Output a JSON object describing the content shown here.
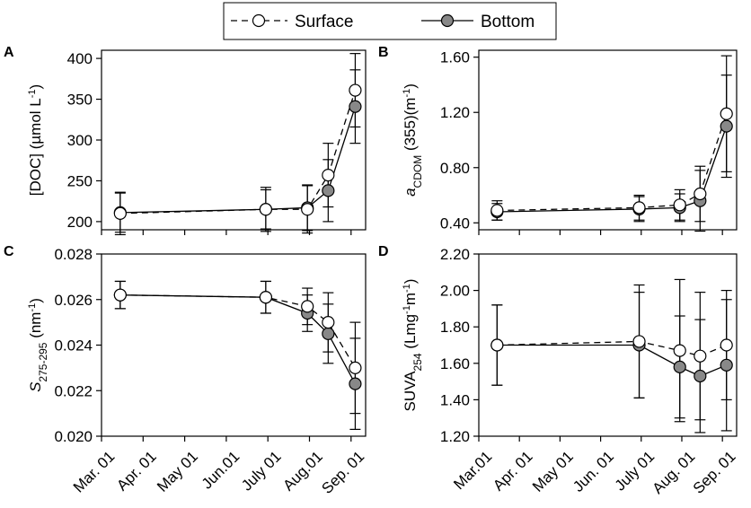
{
  "legend": {
    "surface_label": "Surface",
    "bottom_label": "Bottom"
  },
  "colors": {
    "bottom_fill": "#888888",
    "surface_fill": "#ffffff",
    "line": "#000000"
  },
  "chart_data": [
    {
      "panel": "A",
      "type": "line",
      "ylabel_main": "[DOC] (µmol L",
      "ylabel_sup": "-1",
      "ylabel_end": ")",
      "ylim": [
        190,
        410
      ],
      "yticks": [
        200,
        250,
        300,
        350,
        400
      ],
      "tick_labels": [
        "200",
        "250",
        "300",
        "350",
        "400"
      ],
      "decimals": 0,
      "xlim": [
        0,
        6.35
      ],
      "series": [
        {
          "name": "Surface",
          "x": [
            0.45,
            3.95,
            4.95,
            5.45,
            6.1
          ],
          "y": [
            210,
            215,
            215,
            257,
            361
          ],
          "err": [
            26,
            27,
            29,
            39,
            45
          ]
        },
        {
          "name": "Bottom",
          "x": [
            0.45,
            3.95,
            4.95,
            5.45,
            6.1
          ],
          "y": [
            211,
            215,
            217,
            238,
            341
          ],
          "err": [
            24,
            24,
            28,
            38,
            45
          ]
        }
      ]
    },
    {
      "panel": "B",
      "type": "line",
      "ylabel_italic": "a",
      "ylabel_sub": "CDOM",
      "ylabel_main": " (355)(m",
      "ylabel_sup": "-1",
      "ylabel_end": ")",
      "ylim": [
        0.35,
        1.65
      ],
      "yticks": [
        0.4,
        0.8,
        1.2,
        1.6
      ],
      "tick_labels": [
        "0.40",
        "0.80",
        "1.20",
        "1.60"
      ],
      "decimals": 2,
      "xlim": [
        0,
        6.35
      ],
      "series": [
        {
          "name": "Surface",
          "x": [
            0.45,
            3.95,
            4.95,
            5.45,
            6.1
          ],
          "y": [
            0.49,
            0.51,
            0.53,
            0.61,
            1.19
          ],
          "err": [
            0.07,
            0.09,
            0.11,
            0.2,
            0.42
          ]
        },
        {
          "name": "Bottom",
          "x": [
            0.45,
            3.95,
            4.95,
            5.45,
            6.1
          ],
          "y": [
            0.48,
            0.5,
            0.51,
            0.56,
            1.1
          ],
          "err": [
            0.06,
            0.09,
            0.1,
            0.22,
            0.37
          ]
        }
      ]
    },
    {
      "panel": "C",
      "type": "line",
      "ylabel_italic": "S",
      "ylabel_sub": "275-295",
      "ylabel_main": " (nm",
      "ylabel_sup": "-1",
      "ylabel_end": ")",
      "ylim": [
        0.02,
        0.028
      ],
      "yticks": [
        0.02,
        0.022,
        0.024,
        0.026,
        0.028
      ],
      "tick_labels": [
        "0.020",
        "0.022",
        "0.024",
        "0.026",
        "0.028"
      ],
      "decimals": 3,
      "xlim": [
        0,
        6.35
      ],
      "xtick_labels": [
        "Mar. 01",
        "Apr. 01",
        "May 01",
        "Jun.01",
        "July 01",
        "Aug.01",
        "Sep. 01"
      ],
      "series": [
        {
          "name": "Surface",
          "x": [
            0.45,
            3.95,
            4.95,
            5.45,
            6.1
          ],
          "y": [
            0.0262,
            0.0261,
            0.0257,
            0.025,
            0.023
          ],
          "err": [
            0.0006,
            0.0007,
            0.0008,
            0.0013,
            0.002
          ]
        },
        {
          "name": "Bottom",
          "x": [
            0.45,
            3.95,
            4.95,
            5.45,
            6.1
          ],
          "y": [
            0.0262,
            0.0261,
            0.0254,
            0.0245,
            0.0223
          ],
          "err": [
            0.0006,
            0.0007,
            0.0008,
            0.0013,
            0.002
          ]
        }
      ]
    },
    {
      "panel": "D",
      "type": "line",
      "ylabel_pre": "SUVA",
      "ylabel_sub": "254",
      "ylabel_main": " (Lmg",
      "ylabel_sup": "-1",
      "ylabel_mid": "m",
      "ylabel_sup2": "-1",
      "ylabel_end": ")",
      "ylim": [
        1.2,
        2.2
      ],
      "yticks": [
        1.2,
        1.4,
        1.6,
        1.8,
        2.0,
        2.2
      ],
      "tick_labels": [
        "1.20",
        "1.40",
        "1.60",
        "1.80",
        "2.00",
        "2.20"
      ],
      "decimals": 2,
      "xlim": [
        0,
        6.35
      ],
      "xtick_labels": [
        "Mar.01",
        "Apr. 01",
        "May 01",
        "Jun. 01",
        "July 01",
        "Aug. 01",
        "Sep. 01"
      ],
      "series": [
        {
          "name": "Surface",
          "x": [
            0.45,
            3.95,
            4.95,
            5.45,
            6.1
          ],
          "y": [
            1.7,
            1.72,
            1.67,
            1.64,
            1.7
          ],
          "err": [
            0.22,
            0.31,
            0.39,
            0.35,
            0.3
          ]
        },
        {
          "name": "Bottom",
          "x": [
            0.45,
            3.95,
            4.95,
            5.45,
            6.1
          ],
          "y": [
            1.7,
            1.7,
            1.58,
            1.53,
            1.59
          ],
          "err": [
            0.22,
            0.29,
            0.28,
            0.31,
            0.36
          ]
        }
      ]
    }
  ]
}
